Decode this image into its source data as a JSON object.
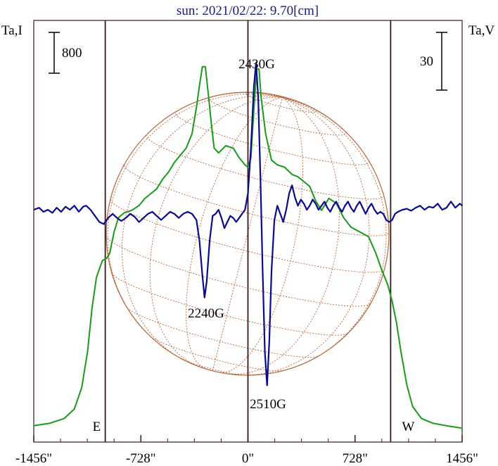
{
  "chart_data": {
    "type": "line",
    "title": "sun: 2021/02/22: 9.70[cm]",
    "ylabel_left": "Ta,I",
    "ylabel_right": "Ta,V",
    "xlim": [
      -1456,
      1456
    ],
    "x_ticks": [
      {
        "value": -1456,
        "label": "-1456\""
      },
      {
        "value": -728,
        "label": "-728\""
      },
      {
        "value": 0,
        "label": "0\""
      },
      {
        "value": 728,
        "label": "728\""
      },
      {
        "value": 1456,
        "label": "1456\""
      }
    ],
    "scale_bar_left": "800",
    "scale_bar_right": "30",
    "limb_markers": [
      {
        "x": -970,
        "label": "E"
      },
      {
        "x": 970,
        "label": "W"
      }
    ],
    "annotations": [
      {
        "text": "2430G",
        "x": 60
      },
      {
        "text": "2240G",
        "x": -290
      },
      {
        "text": "2510G",
        "x": 130
      }
    ],
    "colors": {
      "intensity": "#1a9a1a",
      "polarization": "#0a0a8c",
      "solar_disc": "#b5653a",
      "axes": "#3a1a1a",
      "title": "#1a1a7a"
    },
    "series": [
      {
        "name": "Ta,I",
        "points": [
          [
            -1456,
            0.03
          ],
          [
            -1350,
            0.04
          ],
          [
            -1250,
            0.06
          ],
          [
            -1180,
            0.1
          ],
          [
            -1130,
            0.19
          ],
          [
            -1090,
            0.34
          ],
          [
            -1060,
            0.52
          ],
          [
            -1030,
            0.65
          ],
          [
            -990,
            0.72
          ],
          [
            -960,
            0.73
          ],
          [
            -940,
            0.75
          ],
          [
            -910,
            0.84
          ],
          [
            -880,
            0.9
          ],
          [
            -840,
            0.92
          ],
          [
            -790,
            0.93
          ],
          [
            -740,
            0.95
          ],
          [
            -700,
            0.98
          ],
          [
            -660,
            1.0
          ],
          [
            -620,
            1.02
          ],
          [
            -580,
            1.06
          ],
          [
            -540,
            1.09
          ],
          [
            -500,
            1.13
          ],
          [
            -460,
            1.16
          ],
          [
            -420,
            1.19
          ],
          [
            -380,
            1.25
          ],
          [
            -350,
            1.36
          ],
          [
            -330,
            1.45
          ],
          [
            -310,
            1.53
          ],
          [
            -290,
            1.53
          ],
          [
            -270,
            1.42
          ],
          [
            -250,
            1.3
          ],
          [
            -230,
            1.19
          ],
          [
            -200,
            1.17
          ],
          [
            -150,
            1.2
          ],
          [
            -100,
            1.19
          ],
          [
            -60,
            1.15
          ],
          [
            -20,
            1.12
          ],
          [
            0,
            1.11
          ],
          [
            20,
            1.15
          ],
          [
            40,
            1.35
          ],
          [
            60,
            1.52
          ],
          [
            75,
            1.52
          ],
          [
            90,
            1.4
          ],
          [
            120,
            1.25
          ],
          [
            160,
            1.14
          ],
          [
            200,
            1.12
          ],
          [
            250,
            1.11
          ],
          [
            300,
            1.08
          ],
          [
            340,
            1.07
          ],
          [
            380,
            1.05
          ],
          [
            420,
            1.03
          ],
          [
            460,
            0.97
          ],
          [
            500,
            0.93
          ],
          [
            550,
            0.98
          ],
          [
            600,
            0.96
          ],
          [
            650,
            0.9
          ],
          [
            700,
            0.86
          ],
          [
            760,
            0.84
          ],
          [
            820,
            0.82
          ],
          [
            870,
            0.75
          ],
          [
            910,
            0.68
          ],
          [
            950,
            0.62
          ],
          [
            980,
            0.55
          ],
          [
            1010,
            0.46
          ],
          [
            1040,
            0.34
          ],
          [
            1080,
            0.2
          ],
          [
            1120,
            0.11
          ],
          [
            1180,
            0.06
          ],
          [
            1260,
            0.04
          ],
          [
            1350,
            0.03
          ],
          [
            1456,
            0.02
          ]
        ]
      },
      {
        "name": "Ta,V",
        "points": [
          [
            -1456,
            0.0
          ],
          [
            -1420,
            0.01
          ],
          [
            -1390,
            -0.01
          ],
          [
            -1360,
            0.0
          ],
          [
            -1330,
            -0.015
          ],
          [
            -1300,
            0.01
          ],
          [
            -1270,
            -0.01
          ],
          [
            -1240,
            0.015
          ],
          [
            -1210,
            0.0
          ],
          [
            -1180,
            0.02
          ],
          [
            -1150,
            -0.01
          ],
          [
            -1120,
            0.015
          ],
          [
            -1100,
            0.02
          ],
          [
            -1070,
            0.0
          ],
          [
            -1040,
            -0.03
          ],
          [
            -1010,
            -0.06
          ],
          [
            -980,
            -0.07
          ],
          [
            -950,
            -0.04
          ],
          [
            -920,
            -0.02
          ],
          [
            -890,
            -0.04
          ],
          [
            -860,
            -0.055
          ],
          [
            -830,
            -0.04
          ],
          [
            -800,
            -0.02
          ],
          [
            -770,
            -0.035
          ],
          [
            -740,
            -0.06
          ],
          [
            -710,
            -0.04
          ],
          [
            -680,
            -0.02
          ],
          [
            -650,
            -0.01
          ],
          [
            -620,
            -0.03
          ],
          [
            -590,
            -0.05
          ],
          [
            -560,
            -0.03
          ],
          [
            -530,
            -0.01
          ],
          [
            -500,
            -0.02
          ],
          [
            -470,
            -0.04
          ],
          [
            -440,
            -0.02
          ],
          [
            -410,
            -0.01
          ],
          [
            -380,
            -0.02
          ],
          [
            -350,
            -0.05
          ],
          [
            -330,
            -0.15
          ],
          [
            -310,
            -0.32
          ],
          [
            -295,
            -0.43
          ],
          [
            -280,
            -0.35
          ],
          [
            -260,
            -0.15
          ],
          [
            -240,
            -0.03
          ],
          [
            -220,
            -0.02
          ],
          [
            -200,
            0.0
          ],
          [
            -180,
            -0.04
          ],
          [
            -160,
            -0.09
          ],
          [
            -140,
            -0.06
          ],
          [
            -120,
            -0.03
          ],
          [
            -100,
            -0.04
          ],
          [
            -80,
            -0.06
          ],
          [
            -60,
            -0.04
          ],
          [
            -40,
            -0.02
          ],
          [
            -20,
            0.0
          ],
          [
            0,
            0.08
          ],
          [
            20,
            0.3
          ],
          [
            40,
            0.6
          ],
          [
            55,
            0.72
          ],
          [
            70,
            0.55
          ],
          [
            85,
            0.15
          ],
          [
            100,
            -0.3
          ],
          [
            115,
            -0.7
          ],
          [
            130,
            -0.86
          ],
          [
            145,
            -0.65
          ],
          [
            160,
            -0.3
          ],
          [
            180,
            -0.05
          ],
          [
            200,
            0.02
          ],
          [
            220,
            -0.02
          ],
          [
            240,
            -0.06
          ],
          [
            260,
            0.0
          ],
          [
            280,
            0.08
          ],
          [
            300,
            0.12
          ],
          [
            320,
            0.06
          ],
          [
            340,
            0.02
          ],
          [
            360,
            0.05
          ],
          [
            380,
            0.03
          ],
          [
            400,
            0.0
          ],
          [
            420,
            0.02
          ],
          [
            440,
            0.05
          ],
          [
            460,
            0.03
          ],
          [
            480,
            0.0
          ],
          [
            500,
            0.02
          ],
          [
            520,
            0.04
          ],
          [
            540,
            0.01
          ],
          [
            560,
            -0.01
          ],
          [
            580,
            0.02
          ],
          [
            600,
            0.04
          ],
          [
            620,
            0.01
          ],
          [
            640,
            -0.01
          ],
          [
            660,
            0.02
          ],
          [
            680,
            0.04
          ],
          [
            700,
            0.01
          ],
          [
            720,
            -0.01
          ],
          [
            740,
            0.02
          ],
          [
            760,
            0.04
          ],
          [
            780,
            0.01
          ],
          [
            800,
            -0.02
          ],
          [
            820,
            0.01
          ],
          [
            840,
            0.03
          ],
          [
            860,
            0.0
          ],
          [
            880,
            -0.02
          ],
          [
            900,
            -0.01
          ],
          [
            920,
            -0.02
          ],
          [
            940,
            -0.05
          ],
          [
            960,
            -0.06
          ],
          [
            980,
            -0.05
          ],
          [
            1000,
            -0.02
          ],
          [
            1020,
            -0.01
          ],
          [
            1050,
            0.0
          ],
          [
            1080,
            0.005
          ],
          [
            1110,
            -0.005
          ],
          [
            1140,
            0.01
          ],
          [
            1170,
            0.02
          ],
          [
            1200,
            0.0
          ],
          [
            1230,
            0.015
          ],
          [
            1260,
            0.01
          ],
          [
            1290,
            0.03
          ],
          [
            1320,
            0.0
          ],
          [
            1350,
            0.01
          ],
          [
            1380,
            0.04
          ],
          [
            1410,
            0.01
          ],
          [
            1440,
            0.03
          ],
          [
            1456,
            0.02
          ]
        ]
      }
    ]
  }
}
